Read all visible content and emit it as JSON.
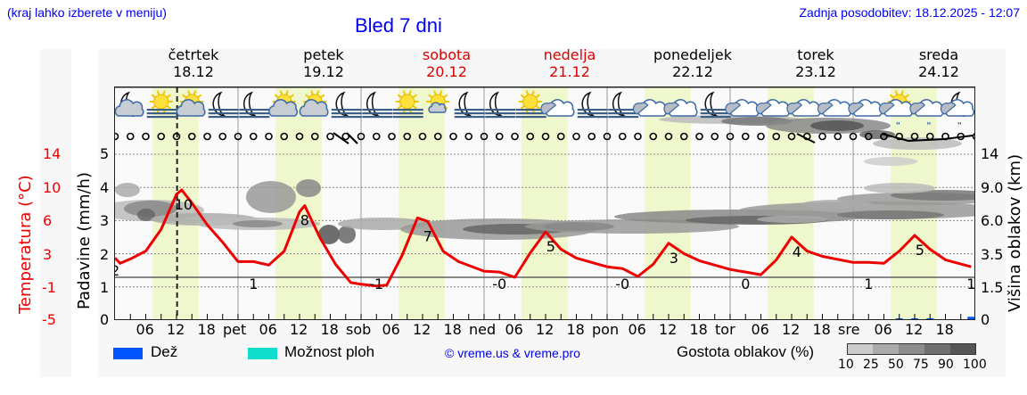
{
  "header": {
    "location_hint": "(kraj lahko izberete v meniju)",
    "title": "Bled 7 dni",
    "last_update": "Zadnja posodobitev: 18.12.2025 - 12:07"
  },
  "days": [
    {
      "name": "četrtek",
      "date": "18.12",
      "weekend": false
    },
    {
      "name": "petek",
      "date": "19.12",
      "weekend": false
    },
    {
      "name": "sobota",
      "date": "20.12",
      "weekend": true
    },
    {
      "name": "nedelja",
      "date": "21.12",
      "weekend": true
    },
    {
      "name": "ponedeljek",
      "date": "22.12",
      "weekend": false
    },
    {
      "name": "torek",
      "date": "23.12",
      "weekend": false
    },
    {
      "name": "sreda",
      "date": "24.12",
      "weekend": false
    }
  ],
  "axes": {
    "temperature_title": "Temperatura (°C)",
    "precip_title": "Padavine (mm/h)",
    "cloud_height_title": "Višina oblakov (km)",
    "temperature_ticks": [
      "14",
      "10",
      "6",
      "3",
      "-1",
      "-5"
    ],
    "precip_ticks": [
      "5",
      "4",
      "3",
      "2",
      "1",
      "0"
    ],
    "cloud_height_ticks": [
      "14",
      "9.0",
      "6.0",
      "3.5",
      "1.5",
      "0"
    ],
    "x_ticks": [
      "06",
      "12",
      "18",
      "pet",
      "06",
      "12",
      "18",
      "sob",
      "06",
      "12",
      "18",
      "ned",
      "06",
      "12",
      "18",
      "pon",
      "06",
      "12",
      "18",
      "tor",
      "06",
      "12",
      "18",
      "sre",
      "06",
      "12",
      "18"
    ]
  },
  "legend": {
    "rain_label": "Dež",
    "rain_color": "#0055ff",
    "showers_label": "Možnost ploh",
    "showers_color": "#11ddcc",
    "copyright": "© vreme.us & vreme.pro",
    "cloud_density_label": "Gostota oblakov (%)",
    "cloud_density_ticks": [
      "10",
      "25",
      "50",
      "75",
      "90",
      "100"
    ],
    "cloud_density_colors": [
      "#cccccc",
      "#aaaaaa",
      "#8c8c8c",
      "#707070",
      "#555555"
    ]
  },
  "icons": [
    "moon-cloud",
    "sun-fog",
    "sun-cloud",
    "moon-fog",
    "moon-fog",
    "sun-cloud",
    "sun-cloud",
    "moon-fog",
    "moon-fog",
    "sun-fog",
    "sun-cloud-small",
    "moon-fog",
    "moon-fog",
    "sun-fog",
    "cloud",
    "moon-fog",
    "moon-fog",
    "cloud",
    "cloud",
    "moon-fog",
    "cloud",
    "cloud",
    "cloud",
    "cloud",
    "cloud",
    "sun-cloud-drizzle",
    "cloud-drizzle",
    "moon-cloud-drizzle"
  ],
  "chart_data": {
    "type": "line",
    "title": "Bled 7 dni",
    "xlabel": "",
    "ylabel": "Temperatura (°C)",
    "ylim": [
      -5,
      14
    ],
    "series": [
      {
        "name": "Temperatura",
        "color": "#ee0000",
        "points": [
          {
            "t": "18.12 00",
            "v": 2.2
          },
          {
            "t": "18.12 01",
            "v": 1.6
          },
          {
            "t": "18.12 03",
            "v": 2.1
          },
          {
            "t": "18.12 06",
            "v": 3.0
          },
          {
            "t": "18.12 09",
            "v": 5.5
          },
          {
            "t": "18.12 12",
            "v": 9.5
          },
          {
            "t": "18.12 13",
            "v": 10.0
          },
          {
            "t": "18.12 15",
            "v": 8.5
          },
          {
            "t": "18.12 18",
            "v": 6.0
          },
          {
            "t": "18.12 21",
            "v": 4.0
          },
          {
            "t": "19.12 00",
            "v": 1.8
          },
          {
            "t": "19.12 03",
            "v": 1.8
          },
          {
            "t": "19.12 06",
            "v": 1.4
          },
          {
            "t": "19.12 09",
            "v": 3.0
          },
          {
            "t": "19.12 12",
            "v": 7.5
          },
          {
            "t": "19.12 13",
            "v": 8.2
          },
          {
            "t": "19.12 16",
            "v": 4.5
          },
          {
            "t": "19.12 19",
            "v": 1.5
          },
          {
            "t": "19.12 22",
            "v": -0.6
          },
          {
            "t": "20.12 00",
            "v": -0.8
          },
          {
            "t": "20.12 03",
            "v": -1.0
          },
          {
            "t": "20.12 05",
            "v": -0.9
          },
          {
            "t": "20.12 08",
            "v": 2.5
          },
          {
            "t": "20.12 11",
            "v": 6.8
          },
          {
            "t": "20.12 13",
            "v": 6.4
          },
          {
            "t": "20.12 16",
            "v": 3.0
          },
          {
            "t": "20.12 19",
            "v": 1.8
          },
          {
            "t": "21.12 00",
            "v": 0.7
          },
          {
            "t": "21.12 03",
            "v": 0.6
          },
          {
            "t": "21.12 06",
            "v": 0.0
          },
          {
            "t": "21.12 09",
            "v": 2.8
          },
          {
            "t": "21.12 12",
            "v": 5.2
          },
          {
            "t": "21.12 15",
            "v": 3.2
          },
          {
            "t": "21.12 18",
            "v": 2.2
          },
          {
            "t": "22.12 00",
            "v": 1.2
          },
          {
            "t": "22.12 03",
            "v": 1.0
          },
          {
            "t": "22.12 06",
            "v": 0.1
          },
          {
            "t": "22.12 09",
            "v": 1.5
          },
          {
            "t": "22.12 12",
            "v": 3.9
          },
          {
            "t": "22.12 15",
            "v": 2.7
          },
          {
            "t": "22.12 18",
            "v": 1.9
          },
          {
            "t": "23.12 00",
            "v": 0.9
          },
          {
            "t": "23.12 03",
            "v": 0.6
          },
          {
            "t": "23.12 06",
            "v": 0.3
          },
          {
            "t": "23.12 09",
            "v": 2.0
          },
          {
            "t": "23.12 12",
            "v": 4.6
          },
          {
            "t": "23.12 15",
            "v": 3.0
          },
          {
            "t": "23.12 18",
            "v": 2.4
          },
          {
            "t": "24.12 00",
            "v": 1.7
          },
          {
            "t": "24.12 03",
            "v": 1.7
          },
          {
            "t": "24.12 06",
            "v": 1.6
          },
          {
            "t": "24.12 09",
            "v": 3.0
          },
          {
            "t": "24.12 12",
            "v": 4.8
          },
          {
            "t": "24.12 15",
            "v": 3.2
          },
          {
            "t": "24.12 18",
            "v": 2.0
          },
          {
            "t": "24.12 23",
            "v": 1.2
          }
        ]
      },
      {
        "name": "Padavine (mm/h)",
        "color": "#0055ff",
        "points": [
          {
            "t": "24.12 09",
            "v": 0.02
          },
          {
            "t": "24.12 12",
            "v": 0.02
          },
          {
            "t": "24.12 15",
            "v": 0.02
          },
          {
            "t": "24.12 23",
            "v": 0.1
          }
        ]
      }
    ],
    "annotations": [
      {
        "t": "18.12 00",
        "label": "2"
      },
      {
        "t": "18.12 13",
        "label": "10"
      },
      {
        "t": "19.12 03",
        "label": "1"
      },
      {
        "t": "19.12 13",
        "label": "8"
      },
      {
        "t": "20.12 03",
        "label": "-1"
      },
      {
        "t": "20.12 13",
        "label": "7"
      },
      {
        "t": "21.12 03",
        "label": "-0"
      },
      {
        "t": "21.12 13",
        "label": "5"
      },
      {
        "t": "22.12 03",
        "label": "-0"
      },
      {
        "t": "22.12 13",
        "label": "3"
      },
      {
        "t": "23.12 03",
        "label": "0"
      },
      {
        "t": "23.12 13",
        "label": "4"
      },
      {
        "t": "24.12 03",
        "label": "1"
      },
      {
        "t": "24.12 13",
        "label": "5"
      },
      {
        "t": "24.12 23",
        "label": "1"
      }
    ],
    "current_time_marker": "18.12 12:07",
    "zero_line_temperature": 0,
    "legend_position": "bottom",
    "grid": true
  }
}
